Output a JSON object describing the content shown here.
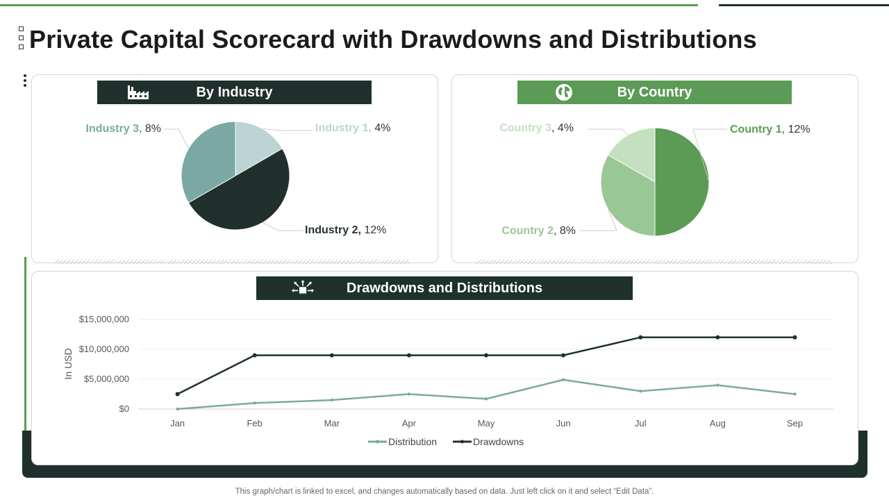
{
  "title": "Private Capital Scorecard with Drawdowns and Distributions",
  "footer_note": "This graph/chart is linked to excel,  and changes automatically based on data. Just left click on it and select “Edit Data”.",
  "colors": {
    "dark": "#1f302d",
    "green": "#5b9b55",
    "teal": "#7aa9a4",
    "teal_light": "#bcd4d4",
    "green_mid": "#9ac796",
    "green_light": "#c5dfc1",
    "grid": "#e6e6e6"
  },
  "industry": {
    "heading": "By Industry",
    "icon": "factory-icon"
  },
  "country": {
    "heading": "By Country",
    "icon": "globe-icon"
  },
  "drawdowns": {
    "heading": "Drawdowns and Distributions",
    "icon": "box-arrows-icon"
  },
  "chart_data": [
    {
      "type": "pie",
      "title": "By Industry",
      "slices": [
        {
          "name": "Industry 1",
          "label": "Industry 1,",
          "pct": "4%",
          "value": 4,
          "color": "#bcd4d4"
        },
        {
          "name": "Industry 2",
          "label": "Industry 2,",
          "pct": "12%",
          "value": 12,
          "color": "#1f302d"
        },
        {
          "name": "Industry 3",
          "label": "Industry 3,",
          "pct": "8%",
          "value": 8,
          "color": "#7aa9a4"
        }
      ]
    },
    {
      "type": "pie",
      "title": "By Country",
      "slices": [
        {
          "name": "Country 1",
          "label": "Country 1",
          "pct": ", 12%",
          "value": 12,
          "color": "#5b9b55"
        },
        {
          "name": "Country 2",
          "label": "Country 2",
          "pct": ", 8%",
          "value": 8,
          "color": "#9ac796"
        },
        {
          "name": "Country 3",
          "label": "Country 3",
          "pct": ", 4%",
          "value": 4,
          "color": "#c5dfc1"
        }
      ]
    },
    {
      "type": "line",
      "title": "Drawdowns and Distributions",
      "categories": [
        "Jan",
        "Feb",
        "Mar",
        "Apr",
        "May",
        "Jun",
        "Jul",
        "Aug",
        "Sep"
      ],
      "series": [
        {
          "name": "Distribution",
          "color": "#7aa9a4",
          "values": [
            0,
            1000000,
            1500000,
            2500000,
            1700000,
            4900000,
            3000000,
            4000000,
            2500000
          ]
        },
        {
          "name": "Drawdowns",
          "color": "#1f302d",
          "values": [
            2500000,
            9000000,
            9000000,
            9000000,
            9000000,
            9000000,
            12000000,
            12000000,
            12000000
          ]
        }
      ],
      "yticks": [
        0,
        5000000,
        10000000,
        15000000
      ],
      "ytick_labels": [
        "$0",
        "$5,000,000",
        "$10,000,000",
        "$15,000,000"
      ],
      "ylim": [
        0,
        15000000
      ],
      "ylabel": "In USD",
      "xlabel": "",
      "legend": "bottom",
      "grid": true
    }
  ]
}
